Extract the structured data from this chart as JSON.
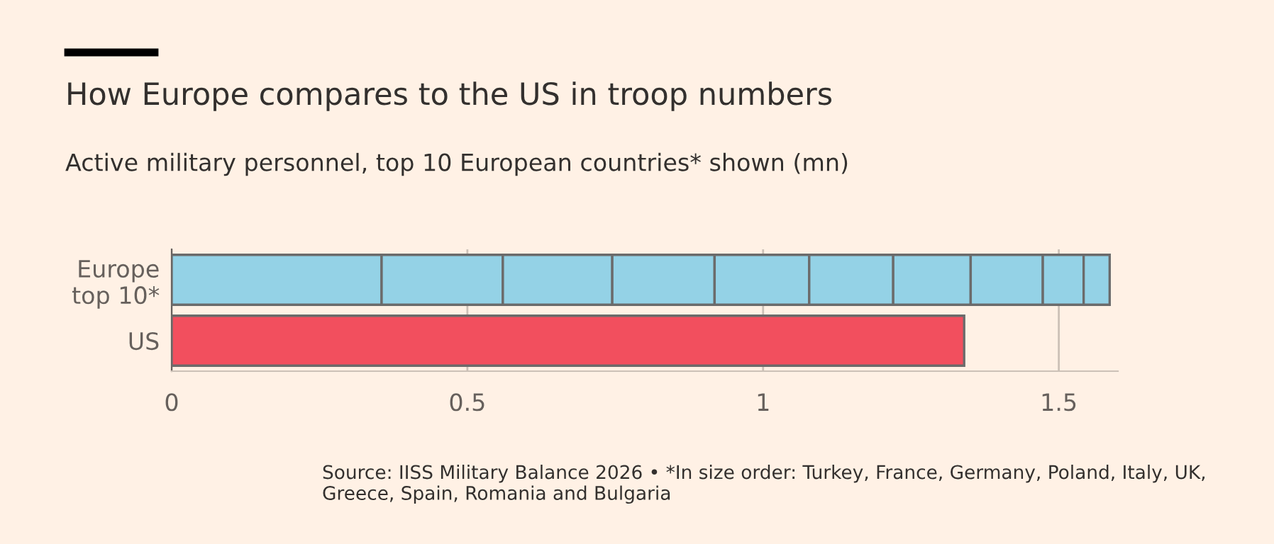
{
  "chart_data": {
    "type": "bar",
    "orientation": "horizontal",
    "stacked": true,
    "title": "How Europe compares to the US in troop numbers",
    "subtitle": "Active military personnel, top 10 European countries* shown (mn)",
    "categories": [
      "Europe\ntop 10*",
      "US"
    ],
    "series": [
      {
        "color": "#94d2e6",
        "values": [
          0.355,
          null
        ]
      },
      {
        "color": "#94d2e6",
        "values": [
          0.205,
          null
        ]
      },
      {
        "color": "#94d2e6",
        "values": [
          0.185,
          null
        ]
      },
      {
        "color": "#94d2e6",
        "values": [
          0.173,
          null
        ]
      },
      {
        "color": "#94d2e6",
        "values": [
          0.16,
          null
        ]
      },
      {
        "color": "#94d2e6",
        "values": [
          0.142,
          null
        ]
      },
      {
        "color": "#94d2e6",
        "values": [
          0.131,
          null
        ]
      },
      {
        "color": "#94d2e6",
        "values": [
          0.122,
          null
        ]
      },
      {
        "color": "#94d2e6",
        "values": [
          0.069,
          null
        ]
      },
      {
        "color": "#94d2e6",
        "values": [
          0.044,
          null
        ]
      },
      {
        "color": "#f24f5e",
        "values": [
          null,
          1.34
        ]
      }
    ],
    "xlim": [
      0,
      1.6
    ],
    "xticks": [
      0,
      0.5,
      1,
      1.5
    ],
    "grid": "x",
    "legend": false,
    "annotations": [
      "Source: IISS Military Balance 2026 • *In size order: Turkey, France, Germany, Poland, Italy, UK, Greece, Spain, Romania and Bulgaria"
    ]
  }
}
